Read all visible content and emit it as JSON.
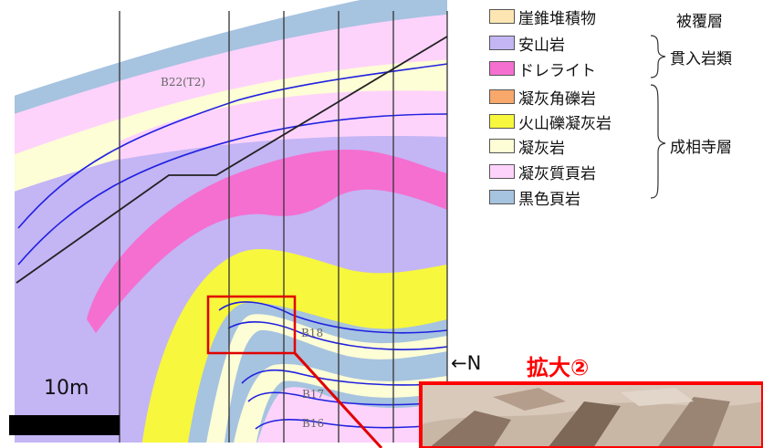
{
  "legend": {
    "items": [
      {
        "label": "崖錐堆積物",
        "color": "#fde6b3"
      },
      {
        "label": "安山岩",
        "color": "#c4b5f5"
      },
      {
        "label": "ドレライト",
        "color": "#f46fd0"
      },
      {
        "label": "凝灰角礫岩",
        "color": "#f7a86a"
      },
      {
        "label": "火山礫凝灰岩",
        "color": "#f7f73d"
      },
      {
        "label": "凝灰岩",
        "color": "#fdfdd6"
      },
      {
        "label": "凝灰質頁岩",
        "color": "#fdd3fb"
      },
      {
        "label": "黒色頁岩",
        "color": "#a6c3e0"
      }
    ],
    "groups": {
      "cover": "被覆層",
      "intrusive": "貫入岩類",
      "formation": "成相寺層"
    }
  },
  "section": {
    "boreholes": [
      "B22(T2)",
      "B18",
      "B17",
      "B16"
    ],
    "scale_label": "10m",
    "north_label": "←N",
    "zoom_label": "拡大②"
  }
}
